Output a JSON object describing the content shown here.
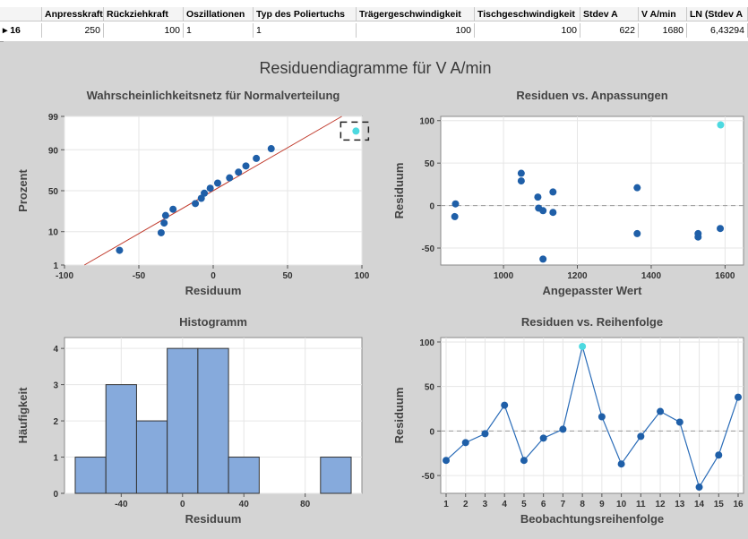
{
  "table": {
    "columns": [
      "Anpresskraft",
      "Rückziehkraft",
      "Oszillationen",
      "Typ des Poliertuchs",
      "Trägergeschwindigkeit",
      "Tischgeschwindigkeit",
      "Stdev A",
      "V A/min",
      "LN (Stdev A"
    ],
    "row": {
      "id": "16",
      "values": [
        "250",
        "100",
        "1",
        "1",
        "100",
        "100",
        "622",
        "1680",
        "6,43294"
      ]
    }
  },
  "figure_title": "Residuendiagramme für V A/min",
  "colors": {
    "point": "#1f5fa8",
    "highlight": "#4dd9e0",
    "fit_line": "#c0392b",
    "bar_fill": "#86aadc",
    "line": "#2a6cb8",
    "zero_line": "#9a9a9a"
  },
  "chart_data": [
    {
      "type": "scatter",
      "title": "Wahrscheinlichkeitsnetz für Normalverteilung",
      "xlabel": "Residuum",
      "ylabel": "Prozent",
      "xlim": [
        -100,
        100
      ],
      "xticks": [
        "-100",
        "-50",
        "0",
        "50",
        "100"
      ],
      "yticks": [
        "1",
        "10",
        "50",
        "90",
        "99"
      ],
      "points": [
        {
          "x": -63,
          "y": 3.1
        },
        {
          "x": -35,
          "y": 9.4
        },
        {
          "x": -33,
          "y": 15.6
        },
        {
          "x": -32,
          "y": 21.9
        },
        {
          "x": -27,
          "y": 28.1
        },
        {
          "x": -12,
          "y": 34.4
        },
        {
          "x": -8,
          "y": 40.6
        },
        {
          "x": -6,
          "y": 46.9
        },
        {
          "x": -2,
          "y": 53.1
        },
        {
          "x": 3,
          "y": 59.4
        },
        {
          "x": 11,
          "y": 65.6
        },
        {
          "x": 17,
          "y": 71.9
        },
        {
          "x": 22,
          "y": 78.1
        },
        {
          "x": 29,
          "y": 84.4
        },
        {
          "x": 39,
          "y": 90.6
        },
        {
          "x": 96,
          "y": 96.9
        }
      ],
      "highlight_index": 15
    },
    {
      "type": "scatter",
      "title": "Residuen vs. Anpassungen",
      "xlabel": "Angepasster Wert",
      "ylabel": "Residuum",
      "xlim": [
        830,
        1650
      ],
      "ylim": [
        -70,
        105
      ],
      "xticks": [
        "1000",
        "1200",
        "1400",
        "1600"
      ],
      "yticks": [
        "-50",
        "0",
        "50",
        "100"
      ],
      "points": [
        {
          "x": 870,
          "y": 2
        },
        {
          "x": 868,
          "y": -13
        },
        {
          "x": 1048,
          "y": 38
        },
        {
          "x": 1048,
          "y": 29
        },
        {
          "x": 1093,
          "y": 10
        },
        {
          "x": 1095,
          "y": -3
        },
        {
          "x": 1107,
          "y": -6
        },
        {
          "x": 1107,
          "y": -63
        },
        {
          "x": 1134,
          "y": 16
        },
        {
          "x": 1134,
          "y": -8
        },
        {
          "x": 1362,
          "y": 21
        },
        {
          "x": 1362,
          "y": -33
        },
        {
          "x": 1527,
          "y": -33
        },
        {
          "x": 1527,
          "y": -37
        },
        {
          "x": 1587,
          "y": -27
        },
        {
          "x": 1588,
          "y": 95
        }
      ],
      "highlight_index": 15
    },
    {
      "type": "bar",
      "title": "Histogramm",
      "xlabel": "Residuum",
      "ylabel": "Häufigkeit",
      "bins": [
        {
          "from": -70,
          "to": -50,
          "count": 1
        },
        {
          "from": -50,
          "to": -30,
          "count": 3
        },
        {
          "from": -30,
          "to": -10,
          "count": 2
        },
        {
          "from": -10,
          "to": 10,
          "count": 4
        },
        {
          "from": 10,
          "to": 30,
          "count": 4
        },
        {
          "from": 30,
          "to": 50,
          "count": 1
        },
        {
          "from": 50,
          "to": 70,
          "count": 0
        },
        {
          "from": 70,
          "to": 90,
          "count": 0
        },
        {
          "from": 90,
          "to": 110,
          "count": 1
        }
      ],
      "xticks": [
        -40,
        0,
        40,
        80
      ],
      "yticks": [
        0,
        1,
        2,
        3,
        4
      ],
      "ylim": [
        0,
        4.3
      ]
    },
    {
      "type": "line",
      "title": "Residuen vs. Reihenfolge",
      "xlabel": "Beobachtungsreihenfolge",
      "ylabel": "Residuum",
      "ylim": [
        -70,
        105
      ],
      "xticks": [
        "1",
        "2",
        "3",
        "4",
        "5",
        "6",
        "7",
        "8",
        "9",
        "10",
        "11",
        "12",
        "13",
        "14",
        "15",
        "16"
      ],
      "yticks": [
        "-50",
        "0",
        "50",
        "100"
      ],
      "values": [
        -33,
        -13,
        -3,
        29,
        -33,
        -8,
        2,
        95,
        16,
        -37,
        -6,
        22,
        10,
        -63,
        -27,
        38
      ],
      "highlight_index": 7
    }
  ]
}
